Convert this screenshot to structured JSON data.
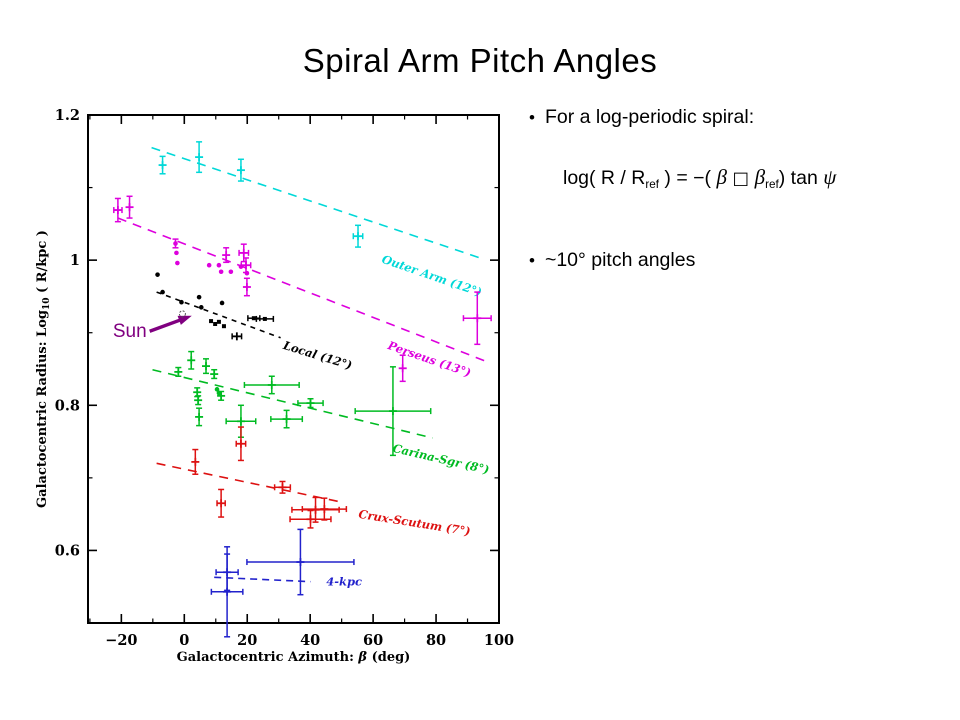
{
  "slide": {
    "title": "Spiral Arm Pitch Angles",
    "bullet_glyph": "•",
    "bullet1": "For a log-periodic spiral:",
    "bullet2": "~10° pitch angles",
    "formula": {
      "p1": "log( R / R",
      "s1": "ref",
      "p2": " ) = −( ",
      "g1": "β",
      "mid": " □ ",
      "g2": "β",
      "s2": "ref",
      "p3": ") tan ",
      "g3": "ψ"
    }
  },
  "chart_data": {
    "type": "scatter",
    "title": "",
    "xlabel_parts": {
      "pre": "Galactocentric Azimuth: ",
      "sym": "β",
      "post": " (deg)"
    },
    "ylabel_parts": {
      "pre": "Galactocentric Radius: Log",
      "sub": "10",
      "post": " ( R/kpc )"
    },
    "xlim": [
      -30.6,
      100
    ],
    "ylim": [
      0.5,
      1.2
    ],
    "xticks": [
      -20,
      0,
      20,
      40,
      60,
      80,
      100
    ],
    "yticks": [
      0.6,
      0.8,
      1,
      1.2
    ],
    "xminor": 10,
    "yminor": 0.1,
    "grid": false,
    "legend": "none",
    "series": [
      {
        "name": "Outer Arm (12°)",
        "color": "#00d8d8",
        "marker": "cross",
        "dash": "9,7",
        "points": [
          {
            "x": -6.9,
            "y": 1.131,
            "ey": 0.012
          },
          {
            "x": 4.7,
            "y": 1.142,
            "ey": 0.021
          },
          {
            "x": 18.0,
            "y": 1.124,
            "ey": 0.015
          },
          {
            "x": 55.2,
            "y": 1.033,
            "ex": 1.5,
            "ey": 0.015
          }
        ],
        "trend": {
          "x1": -10.4,
          "y1": 1.155,
          "x2": 94.0,
          "y2": 1.003
        },
        "label": {
          "text": "Outer Arm (12°)",
          "x": 62.5,
          "y": 0.997,
          "rot": 19
        }
      },
      {
        "name": "Perseus (13°)",
        "color": "#dd00dd",
        "marker": "cross",
        "dash": "9,7",
        "points": [
          {
            "x": -21.1,
            "y": 1.069,
            "ex": 1.3,
            "ey": 0.016
          },
          {
            "x": -17.4,
            "y": 1.073,
            "ey": 0.015
          },
          {
            "x": -2.8,
            "y": 1.023,
            "m": "dot",
            "ey": 0.006
          },
          {
            "x": -2.5,
            "y": 1.01,
            "m": "dot"
          },
          {
            "x": -2.2,
            "y": 0.996,
            "m": "dot"
          },
          {
            "x": 7.9,
            "y": 0.993,
            "m": "dot"
          },
          {
            "x": 11.0,
            "y": 0.993,
            "m": "dot"
          },
          {
            "x": 11.7,
            "y": 0.984,
            "m": "dot"
          },
          {
            "x": 14.8,
            "y": 0.984,
            "m": "dot"
          },
          {
            "x": 18.0,
            "y": 0.991,
            "m": "dot"
          },
          {
            "x": 19.9,
            "y": 0.982,
            "m": "dot"
          },
          {
            "x": 13.3,
            "y": 1.007,
            "ey": 0.01
          },
          {
            "x": 18.9,
            "y": 1.01,
            "ex": 1.5,
            "ey": 0.012
          },
          {
            "x": 19.6,
            "y": 0.993,
            "ex": 1.5,
            "ey": 0.01
          },
          {
            "x": 19.9,
            "y": 0.963,
            "ey": 0.012
          },
          {
            "x": 69.4,
            "y": 0.851,
            "ey": 0.018
          },
          {
            "x": 93.1,
            "y": 0.92,
            "ex": 4.4,
            "ey": 0.036
          }
        ],
        "trend": {
          "x1": -21.1,
          "y1": 1.058,
          "x2": 96.2,
          "y2": 0.86
        },
        "label": {
          "text": "Perseus (13°)",
          "x": 64.4,
          "y": 0.878,
          "rot": 19
        }
      },
      {
        "name": "Local (12°)",
        "color": "#000000",
        "marker": "dot",
        "dash": "5,5",
        "points": [
          {
            "x": -8.5,
            "y": 0.98,
            "m": "dot"
          },
          {
            "x": -6.9,
            "y": 0.956,
            "m": "dot"
          },
          {
            "x": -0.9,
            "y": 0.942,
            "m": "dot"
          },
          {
            "x": 4.7,
            "y": 0.949,
            "m": "dot"
          },
          {
            "x": 5.4,
            "y": 0.935,
            "m": "dot"
          },
          {
            "x": 12.0,
            "y": 0.941,
            "m": "dot"
          },
          {
            "x": 8.5,
            "y": 0.916,
            "m": "sq"
          },
          {
            "x": 9.8,
            "y": 0.912,
            "m": "sq"
          },
          {
            "x": 11.0,
            "y": 0.915,
            "m": "sq"
          },
          {
            "x": 12.6,
            "y": 0.909,
            "m": "sq"
          },
          {
            "x": 22.1,
            "y": 0.92,
            "m": "sq",
            "ex": 1.9
          },
          {
            "x": 25.6,
            "y": 0.919,
            "m": "sq",
            "ex": 2.7
          },
          {
            "x": 16.7,
            "y": 0.895,
            "m": "cross",
            "ex": 1.5
          }
        ],
        "trend": {
          "x1": -8.8,
          "y1": 0.956,
          "x2": 30.6,
          "y2": 0.893
        },
        "label": {
          "text": "Local (12°)",
          "x": 31.2,
          "y": 0.878,
          "rot": 17
        }
      },
      {
        "name": "Carina-Sgr (8°)",
        "color": "#00bb22",
        "marker": "cross",
        "dash": "9,7",
        "points": [
          {
            "x": 2.2,
            "y": 0.862,
            "ey": 0.012
          },
          {
            "x": -1.9,
            "y": 0.846,
            "ey": 0.006
          },
          {
            "x": 6.9,
            "y": 0.854,
            "ey": 0.01
          },
          {
            "x": 9.5,
            "y": 0.843,
            "ey": 0.006
          },
          {
            "x": 10.4,
            "y": 0.822,
            "m": "dot"
          },
          {
            "x": 11.0,
            "y": 0.817,
            "m": "dot"
          },
          {
            "x": 4.1,
            "y": 0.818,
            "ey": 0.006
          },
          {
            "x": 4.4,
            "y": 0.807,
            "ey": 0.006
          },
          {
            "x": 4.7,
            "y": 0.784,
            "ey": 0.012
          },
          {
            "x": 11.7,
            "y": 0.813,
            "ey": 0.006
          },
          {
            "x": 18.0,
            "y": 0.778,
            "ex": 4.7,
            "ey": 0.022
          },
          {
            "x": 27.8,
            "y": 0.828,
            "ex": 8.7,
            "ey": 0.012
          },
          {
            "x": 32.5,
            "y": 0.781,
            "ex": 5.0,
            "ey": 0.012
          },
          {
            "x": 40.1,
            "y": 0.803,
            "ex": 4.0,
            "ey": 0.006
          },
          {
            "x": 66.3,
            "y": 0.792,
            "ex": 12.0,
            "ey": 0.061
          }
        ],
        "trend": {
          "x1": -10.1,
          "y1": 0.849,
          "x2": 78.9,
          "y2": 0.755
        },
        "label": {
          "text": "Carina-Sgr (8°)",
          "x": 66.0,
          "y": 0.736,
          "rot": 13
        }
      },
      {
        "name": "Crux-Scutum (7°)",
        "color": "#dd1111",
        "marker": "cross",
        "dash": "9,7",
        "points": [
          {
            "x": 18.0,
            "y": 0.747,
            "ex": 1.5,
            "ey": 0.023
          },
          {
            "x": 3.5,
            "y": 0.722,
            "ey": 0.017
          },
          {
            "x": 31.2,
            "y": 0.687,
            "ex": 2.5,
            "ey": 0.008
          },
          {
            "x": 11.7,
            "y": 0.665,
            "ex": 1.3,
            "ey": 0.019
          },
          {
            "x": 41.7,
            "y": 0.656,
            "ex": 7.5,
            "ey": 0.017
          },
          {
            "x": 44.5,
            "y": 0.657,
            "ex": 7.0,
            "ey": 0.015
          },
          {
            "x": 40.1,
            "y": 0.643,
            "ex": 6.5,
            "ey": 0.012
          }
        ],
        "trend": {
          "x1": -8.8,
          "y1": 0.72,
          "x2": 49.5,
          "y2": 0.667
        },
        "label": {
          "text": "Crux-Scutum (7°)",
          "x": 55.2,
          "y": 0.645,
          "rot": 9
        }
      },
      {
        "name": "4-kpc",
        "color": "#2222cc",
        "marker": "cross",
        "dash": "7,5",
        "points": [
          {
            "x": 13.6,
            "y": 0.57,
            "ex": 3.5,
            "ey": 0.025
          },
          {
            "x": 13.6,
            "y": 0.543,
            "ex": 5.0,
            "ey": 0.062
          },
          {
            "x": 36.9,
            "y": 0.584,
            "ex": 17.0,
            "ey": 0.045
          }
        ],
        "trend": {
          "x1": 9.5,
          "y1": 0.563,
          "x2": 40.1,
          "y2": 0.557
        },
        "label": {
          "text": "4-kpc",
          "x": 45.1,
          "y": 0.552,
          "rot": 0,
          "upright": true
        }
      }
    ],
    "sun_annotation": {
      "text": "Sun",
      "color": "#800080",
      "text_x": -22.7,
      "text_y": 0.894,
      "arrow_x1": -11.0,
      "arrow_y1": 0.902,
      "arrow_x2": 0.3,
      "arrow_y2": 0.92,
      "marker_x": -0.6,
      "marker_y": 0.926
    }
  }
}
